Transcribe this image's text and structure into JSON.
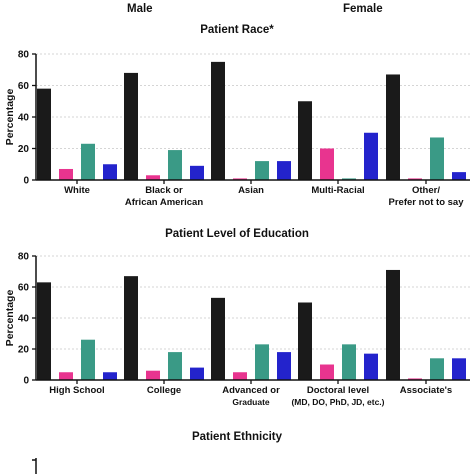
{
  "header": {
    "left_label": "Male",
    "right_label": "Female"
  },
  "colors": {
    "black": "#1a1a1a",
    "pink": "#e8348f",
    "teal": "#3a9a86",
    "blue": "#2323cc"
  },
  "chart_data": [
    {
      "type": "bar",
      "title": "Patient Race*",
      "ylabel": "Percentage",
      "ylim": [
        0,
        80
      ],
      "yticks": [
        "0",
        "20",
        "40",
        "60",
        "80"
      ],
      "grid": true,
      "categories": [
        [
          "White"
        ],
        [
          "Black or",
          "African American"
        ],
        [
          "Asian"
        ],
        [
          "Multi-Racial"
        ],
        [
          "Other/",
          "Prefer not to say"
        ]
      ],
      "series": [
        {
          "color": "#1a1a1a",
          "values": [
            58,
            68,
            75,
            50,
            67
          ]
        },
        {
          "color": "#e8348f",
          "values": [
            7,
            3,
            1,
            20,
            1
          ]
        },
        {
          "color": "#3a9a86",
          "values": [
            23,
            19,
            12,
            1,
            27
          ]
        },
        {
          "color": "#2323cc",
          "values": [
            10,
            9,
            12,
            30,
            5
          ]
        }
      ]
    },
    {
      "type": "bar",
      "title": "Patient Level of Education",
      "ylabel": "Percentage",
      "ylim": [
        0,
        80
      ],
      "yticks": [
        "0",
        "20",
        "40",
        "60",
        "80"
      ],
      "grid": true,
      "categories": [
        [
          "High School"
        ],
        [
          "College"
        ],
        [
          "Advanced or",
          "Graduate"
        ],
        [
          "Doctoral level",
          "(MD, DO, PhD, JD, etc.)"
        ],
        [
          "Associate's"
        ]
      ],
      "series": [
        {
          "color": "#1a1a1a",
          "values": [
            63,
            67,
            53,
            50,
            71
          ]
        },
        {
          "color": "#e8348f",
          "values": [
            5,
            6,
            5,
            10,
            1
          ]
        },
        {
          "color": "#3a9a86",
          "values": [
            26,
            18,
            23,
            23,
            14
          ]
        },
        {
          "color": "#2323cc",
          "values": [
            5,
            8,
            18,
            17,
            14
          ]
        }
      ]
    },
    {
      "type": "bar",
      "title": "Patient Ethnicity",
      "categories": [],
      "series": []
    }
  ]
}
